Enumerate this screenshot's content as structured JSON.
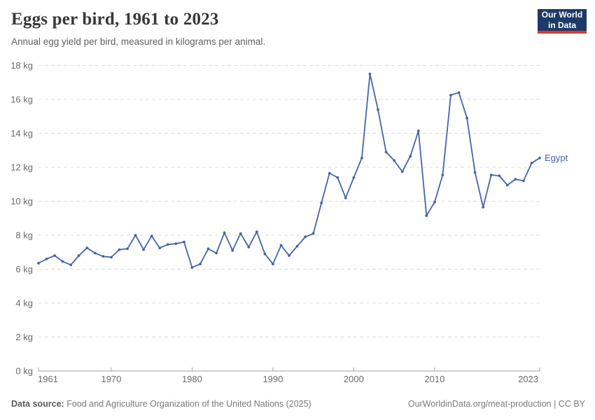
{
  "logo": {
    "line1": "Our World",
    "line2": "in Data",
    "bg_color": "#1E3A68",
    "accent_color": "#D93A35"
  },
  "chart_data": {
    "type": "line",
    "title": "Eggs per bird, 1961 to 2023",
    "subtitle": "Annual egg yield per bird, measured in kilograms per animal.",
    "xlabel": "",
    "ylabel": "kg",
    "ylim": [
      0,
      18
    ],
    "ytick_interval": 2,
    "ytick_suffix": " kg",
    "xticks": [
      1961,
      1970,
      1980,
      1990,
      2000,
      2010,
      2023
    ],
    "grid": "horizontal-dashed",
    "gridline_color": "#dcdcdc",
    "axis_color": "#a0a0a0",
    "legend_position": "end-of-line",
    "x": [
      1961,
      1962,
      1963,
      1964,
      1965,
      1966,
      1967,
      1968,
      1969,
      1970,
      1971,
      1972,
      1973,
      1974,
      1975,
      1976,
      1977,
      1978,
      1979,
      1980,
      1981,
      1982,
      1983,
      1984,
      1985,
      1986,
      1987,
      1988,
      1989,
      1990,
      1991,
      1992,
      1993,
      1994,
      1995,
      1996,
      1997,
      1998,
      1999,
      2000,
      2001,
      2002,
      2003,
      2004,
      2005,
      2006,
      2007,
      2008,
      2009,
      2010,
      2011,
      2012,
      2013,
      2014,
      2015,
      2016,
      2017,
      2018,
      2019,
      2020,
      2021,
      2022,
      2023
    ],
    "series": [
      {
        "name": "Egypt",
        "color": "#4665A8",
        "values": [
          6.35,
          6.6,
          6.8,
          6.45,
          6.25,
          6.8,
          7.25,
          6.95,
          6.75,
          6.7,
          7.15,
          7.2,
          8.0,
          7.15,
          7.95,
          7.25,
          7.45,
          7.5,
          7.6,
          6.1,
          6.3,
          7.2,
          6.95,
          8.15,
          7.1,
          8.1,
          7.3,
          8.2,
          6.9,
          6.3,
          7.4,
          6.8,
          7.35,
          7.9,
          8.1,
          9.9,
          11.65,
          11.4,
          10.2,
          11.4,
          12.55,
          17.5,
          15.4,
          12.9,
          12.4,
          11.75,
          12.65,
          14.15,
          9.15,
          9.95,
          11.55,
          16.25,
          16.4,
          14.9,
          11.7,
          9.65,
          11.55,
          11.5,
          10.95,
          11.3,
          11.2,
          12.25,
          12.55
        ]
      }
    ]
  },
  "footer": {
    "source_label": "Data source:",
    "source_text": " Food and Agriculture Organization of the United Nations (2025)",
    "credit": "OurWorldinData.org/meat-production | CC BY"
  }
}
